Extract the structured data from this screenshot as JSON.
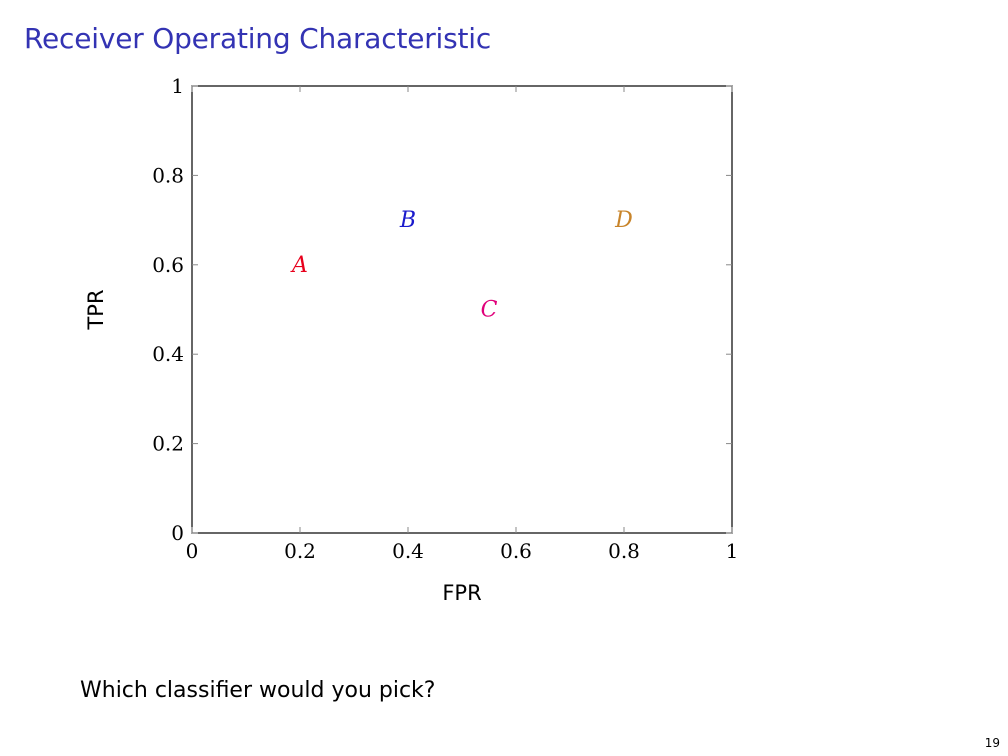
{
  "slide": {
    "title": "Receiver Operating Characteristic",
    "question": "Which classifier would you pick?",
    "page_number": "19"
  },
  "chart_data": {
    "type": "scatter",
    "xlabel": "FPR",
    "ylabel": "TPR",
    "xlim": [
      0,
      1
    ],
    "ylim": [
      0,
      1
    ],
    "xticks": [
      0,
      0.2,
      0.4,
      0.6,
      0.8,
      1
    ],
    "yticks": [
      0,
      0.2,
      0.4,
      0.6,
      0.8,
      1
    ],
    "xtick_labels": [
      "0",
      "0.2",
      "0.4",
      "0.6",
      "0.8",
      "1"
    ],
    "ytick_labels": [
      "0",
      "0.2",
      "0.4",
      "0.6",
      "0.8",
      "1"
    ],
    "grid": false,
    "points": [
      {
        "label": "A",
        "x": 0.2,
        "y": 0.6,
        "color": "#e8001c"
      },
      {
        "label": "B",
        "x": 0.4,
        "y": 0.7,
        "color": "#1a1acc"
      },
      {
        "label": "C",
        "x": 0.55,
        "y": 0.5,
        "color": "#e0007a"
      },
      {
        "label": "D",
        "x": 0.8,
        "y": 0.7,
        "color": "#c8842a"
      }
    ]
  }
}
